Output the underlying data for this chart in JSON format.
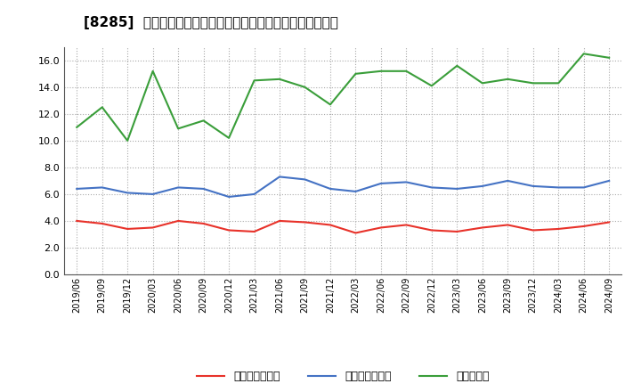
{
  "title": "[8285]  売上債権回転率、買入債務回転率、在庫回転率の推移",
  "x_labels": [
    "2019/06",
    "2019/09",
    "2019/12",
    "2020/03",
    "2020/06",
    "2020/09",
    "2020/12",
    "2021/03",
    "2021/06",
    "2021/09",
    "2021/12",
    "2022/03",
    "2022/06",
    "2022/09",
    "2022/12",
    "2023/03",
    "2023/06",
    "2023/09",
    "2023/12",
    "2024/03",
    "2024/06",
    "2024/09"
  ],
  "uriage": [
    4.0,
    3.8,
    3.4,
    3.5,
    4.0,
    3.8,
    3.3,
    3.2,
    4.0,
    3.9,
    3.7,
    3.1,
    3.5,
    3.7,
    3.3,
    3.2,
    3.5,
    3.7,
    3.3,
    3.4,
    3.6,
    3.9
  ],
  "kaiire": [
    6.4,
    6.5,
    6.1,
    6.0,
    6.5,
    6.4,
    5.8,
    6.0,
    7.3,
    7.1,
    6.4,
    6.2,
    6.8,
    6.9,
    6.5,
    6.4,
    6.6,
    7.0,
    6.6,
    6.5,
    6.5,
    7.0
  ],
  "zaiko": [
    11.0,
    12.5,
    10.0,
    15.2,
    10.9,
    11.5,
    10.2,
    14.5,
    14.6,
    14.0,
    12.7,
    15.0,
    15.2,
    15.2,
    14.1,
    15.6,
    14.3,
    14.6,
    14.3,
    14.3,
    16.5,
    16.2
  ],
  "color_uriage": "#e8322a",
  "color_kaiire": "#4472c4",
  "color_zaiko": "#3a9e3a",
  "ylim": [
    0.0,
    17.0
  ],
  "yticks": [
    0.0,
    2.0,
    4.0,
    6.0,
    8.0,
    10.0,
    12.0,
    14.0,
    16.0
  ],
  "label_uriage": "売上債権回転率",
  "label_kaiire": "買入債務回転率",
  "label_zaiko": "在庫回転率",
  "bg_color": "#ffffff",
  "grid_color": "#aaaaaa",
  "title_fontsize": 11
}
